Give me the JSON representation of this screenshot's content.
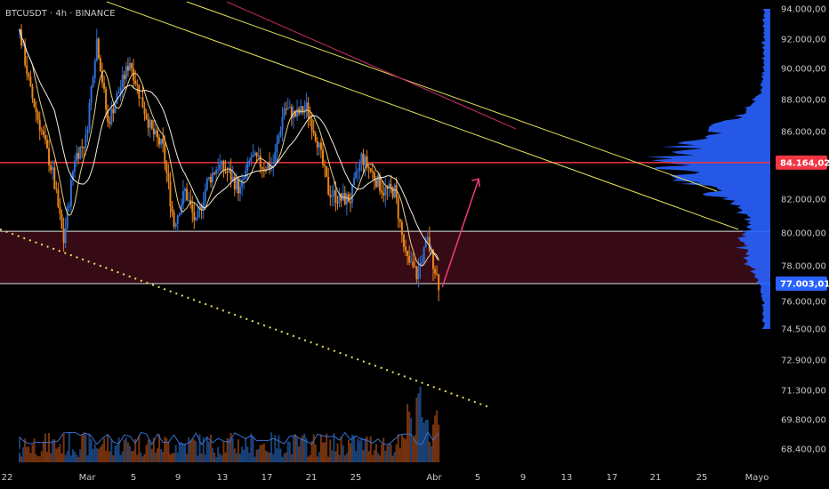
{
  "chart_data": {
    "type": "candlestick",
    "title": "BTCUSDT · 4h · BINANCE",
    "x_ticks": [
      "22",
      "Mar",
      "5",
      "9",
      "13",
      "17",
      "21",
      "25",
      "Abr",
      "5",
      "9",
      "13",
      "17",
      "21",
      "25",
      "Mayo"
    ],
    "y_ticks": [
      "94.000,00",
      "92.000,00",
      "90.000,00",
      "88.000,00",
      "86.000,00",
      "82.000,00",
      "80.000,00",
      "78.000,00",
      "76.000,00",
      "74.500,00",
      "72.900,00",
      "71.300,00",
      "69.800,00",
      "68.400,00"
    ],
    "y_tick_values": [
      94000,
      92000,
      90000,
      88000,
      86000,
      82000,
      80000,
      78000,
      76000,
      74500,
      72900,
      71300,
      69800,
      68400
    ],
    "price_labels": [
      {
        "value": 84164.02,
        "text": "84.164,02",
        "color": "#f23645"
      },
      {
        "value": 77003.01,
        "text": "77.003,01",
        "color": "#2962ff"
      }
    ],
    "zone": {
      "top": 80100,
      "bottom": 77003,
      "color": "#4a0f1c"
    },
    "close_series": [
      {
        "day": 0,
        "close": 92500
      },
      {
        "day": 1,
        "close": 88500
      },
      {
        "day": 2,
        "close": 86000
      },
      {
        "day": 3,
        "close": 83500
      },
      {
        "day": 4,
        "close": 79500
      },
      {
        "day": 5,
        "close": 84500
      },
      {
        "day": 6,
        "close": 85500
      },
      {
        "day": 7,
        "close": 92000
      },
      {
        "day": 8,
        "close": 86500
      },
      {
        "day": 9,
        "close": 88500
      },
      {
        "day": 10,
        "close": 90500
      },
      {
        "day": 11,
        "close": 88000
      },
      {
        "day": 12,
        "close": 86000
      },
      {
        "day": 13,
        "close": 85000
      },
      {
        "day": 14,
        "close": 80500
      },
      {
        "day": 15,
        "close": 82500
      },
      {
        "day": 16,
        "close": 80500
      },
      {
        "day": 17,
        "close": 83000
      },
      {
        "day": 18,
        "close": 84000
      },
      {
        "day": 19,
        "close": 83500
      },
      {
        "day": 20,
        "close": 82500
      },
      {
        "day": 21,
        "close": 84500
      },
      {
        "day": 22,
        "close": 84000
      },
      {
        "day": 23,
        "close": 84000
      },
      {
        "day": 24,
        "close": 87500
      },
      {
        "day": 25,
        "close": 87000
      },
      {
        "day": 26,
        "close": 87500
      },
      {
        "day": 27,
        "close": 85500
      },
      {
        "day": 28,
        "close": 82500
      },
      {
        "day": 29,
        "close": 82000
      },
      {
        "day": 30,
        "close": 82000
      },
      {
        "day": 31,
        "close": 84500
      },
      {
        "day": 32,
        "close": 83500
      },
      {
        "day": 33,
        "close": 82500
      },
      {
        "day": 34,
        "close": 82500
      },
      {
        "day": 35,
        "close": 78500
      },
      {
        "day": 36,
        "close": 77500
      },
      {
        "day": 37,
        "close": 79500
      },
      {
        "day": 38,
        "close": 77000
      }
    ],
    "annotations": {
      "arrow_from": {
        "day": 38,
        "value": 77003
      },
      "arrow_to": {
        "day": 40.5,
        "value": 83200
      }
    },
    "volume_profile_peak": 84200
  }
}
